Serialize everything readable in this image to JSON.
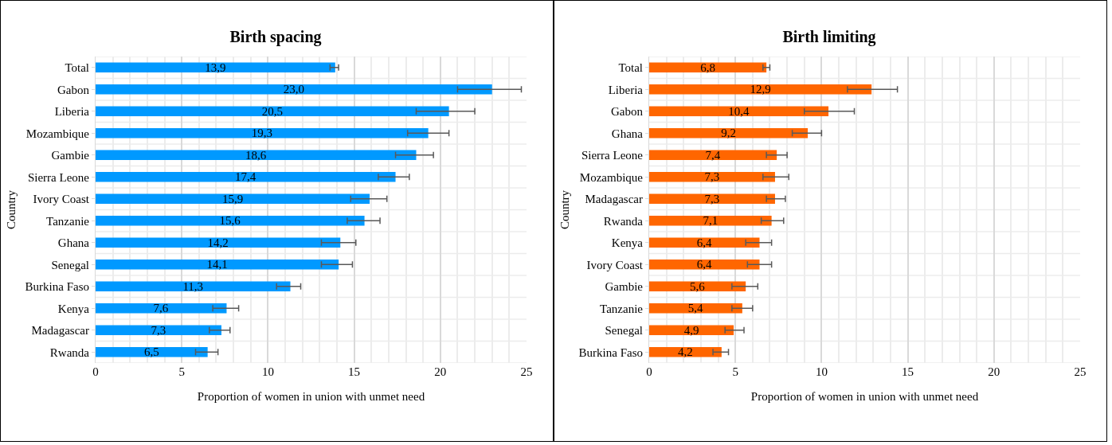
{
  "chart_data": [
    {
      "type": "bar",
      "orientation": "horizontal",
      "title": "Birth spacing",
      "xlabel": "Proportion of women in union with unmet need",
      "ylabel": "Country",
      "categories": [
        "Total",
        "Gabon",
        "Liberia",
        "Mozambique",
        "Gambie",
        "Sierra Leone",
        "Ivory Coast",
        "Tanzanie",
        "Ghana",
        "Senegal",
        "Burkina Faso",
        "Kenya",
        "Madagascar",
        "Rwanda"
      ],
      "series": [
        {
          "color": "#0099ff",
          "values": [
            13.9,
            23.0,
            20.5,
            19.3,
            18.6,
            17.4,
            15.9,
            15.6,
            14.2,
            14.1,
            11.3,
            7.6,
            7.3,
            6.5
          ],
          "errors": [
            [
              13.6,
              14.1
            ],
            [
              21.0,
              24.7
            ],
            [
              18.6,
              22.0
            ],
            [
              18.1,
              20.5
            ],
            [
              17.4,
              19.6
            ],
            [
              16.4,
              18.2
            ],
            [
              14.8,
              16.9
            ],
            [
              14.6,
              16.5
            ],
            [
              13.1,
              15.1
            ],
            [
              13.1,
              14.9
            ],
            [
              10.5,
              11.9
            ],
            [
              6.8,
              8.3
            ],
            [
              6.6,
              7.8
            ],
            [
              5.8,
              7.1
            ]
          ],
          "value_labels": [
            "13,9",
            "23,0",
            "20,5",
            "19,3",
            "18,6",
            "17,4",
            "15,9",
            "15,6",
            "14,2",
            "14,1",
            "11,3",
            "7,6",
            "7,3",
            "6,5"
          ]
        }
      ],
      "xlim": [
        0,
        25
      ],
      "xticks": [
        0,
        5,
        10,
        15,
        20,
        25
      ],
      "grid": true
    },
    {
      "type": "bar",
      "orientation": "horizontal",
      "title": "Birth limiting",
      "xlabel": "Proportion of women in union with unmet need",
      "ylabel": "Country",
      "categories": [
        "Total",
        "Liberia",
        "Gabon",
        "Ghana",
        "Sierra Leone",
        "Mozambique",
        "Madagascar",
        "Rwanda",
        "Kenya",
        "Ivory Coast",
        "Gambie",
        "Tanzanie",
        "Senegal",
        "Burkina Faso"
      ],
      "series": [
        {
          "color": "#ff6600",
          "values": [
            6.8,
            12.9,
            10.4,
            9.2,
            7.4,
            7.3,
            7.3,
            7.1,
            6.4,
            6.4,
            5.6,
            5.4,
            4.9,
            4.2
          ],
          "errors": [
            [
              6.6,
              7.0
            ],
            [
              11.5,
              14.4
            ],
            [
              9.0,
              11.9
            ],
            [
              8.3,
              10.0
            ],
            [
              6.8,
              8.0
            ],
            [
              6.6,
              8.1
            ],
            [
              6.8,
              7.9
            ],
            [
              6.5,
              7.8
            ],
            [
              5.6,
              7.1
            ],
            [
              5.7,
              7.1
            ],
            [
              4.8,
              6.3
            ],
            [
              4.8,
              6.0
            ],
            [
              4.4,
              5.5
            ],
            [
              3.7,
              4.6
            ]
          ],
          "value_labels": [
            "6,8",
            "12,9",
            "10,4",
            "9,2",
            "7,4",
            "7,3",
            "7,3",
            "7,1",
            "6,4",
            "6,4",
            "5,6",
            "5,4",
            "4,9",
            "4,2"
          ]
        }
      ],
      "xlim": [
        0,
        25
      ],
      "xticks": [
        0,
        5,
        10,
        15,
        20,
        25
      ],
      "grid": true
    }
  ]
}
